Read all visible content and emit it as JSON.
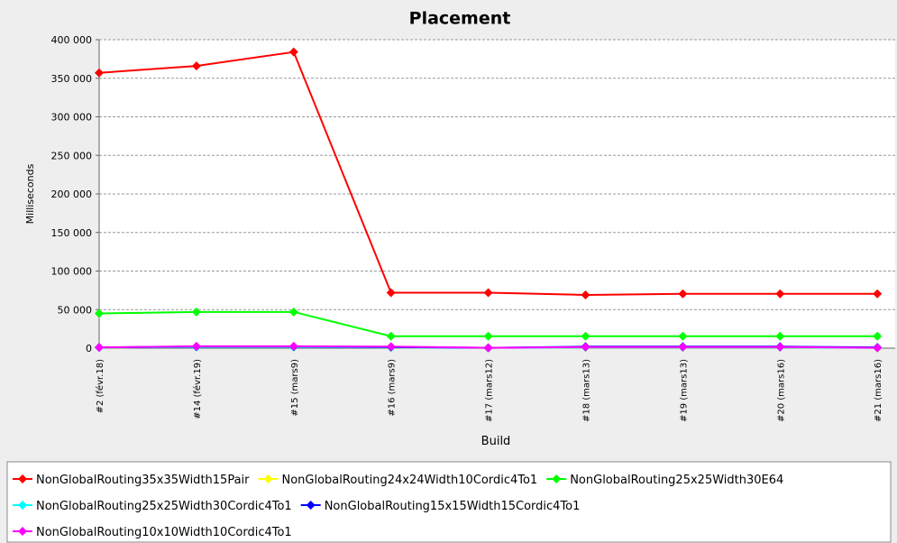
{
  "chart_data": {
    "type": "line",
    "title": "Placement",
    "xlabel": "Build",
    "ylabel": "Milliseconds",
    "categories": [
      "#2 (févr.18)",
      "#14 (févr.19)",
      "#15 (mars9)",
      "#16 (mars9)",
      "#17 (mars12)",
      "#18 (mars13)",
      "#19 (mars13)",
      "#20 (mars16)",
      "#21 (mars16)"
    ],
    "series": [
      {
        "name": "NonGlobalRouting35x35Width15Pair",
        "color": "#ff0000",
        "values": [
          357000,
          366000,
          384000,
          72000,
          72000,
          69000,
          70500,
          70500,
          70500
        ]
      },
      {
        "name": "NonGlobalRouting24x24Width10Cordic4To1",
        "color": "#ffff00",
        "values": [
          1000,
          1500,
          1500,
          1000,
          500,
          1000,
          1000,
          1000,
          500
        ]
      },
      {
        "name": "NonGlobalRouting25x25Width30E64",
        "color": "#00ff00",
        "values": [
          45000,
          47000,
          47000,
          15500,
          15500,
          15500,
          15500,
          15500,
          15500
        ]
      },
      {
        "name": "NonGlobalRouting25x25Width30Cordic4To1",
        "color": "#00ffff",
        "values": [
          1000,
          1500,
          1500,
          1000,
          500,
          1000,
          1000,
          1000,
          500
        ]
      },
      {
        "name": "NonGlobalRouting15x15Width15Cordic4To1",
        "color": "#0000ff",
        "values": [
          1000,
          2000,
          2000,
          1500,
          500,
          2000,
          2000,
          2000,
          1000
        ]
      },
      {
        "name": "NonGlobalRouting10x10Width10Cordic4To1",
        "color": "#ff00ff",
        "values": [
          1000,
          2500,
          2500,
          2000,
          500,
          1500,
          1500,
          1500,
          500
        ]
      }
    ],
    "ylim": [
      0,
      400000
    ],
    "yticks": [
      {
        "value": 0,
        "label": "0"
      },
      {
        "value": 50000,
        "label": "50 000"
      },
      {
        "value": 100000,
        "label": "100 000"
      },
      {
        "value": 150000,
        "label": "150 000"
      },
      {
        "value": 200000,
        "label": "200 000"
      },
      {
        "value": 250000,
        "label": "250 000"
      },
      {
        "value": 300000,
        "label": "300 000"
      },
      {
        "value": 350000,
        "label": "350 000"
      },
      {
        "value": 400000,
        "label": "400 000"
      }
    ],
    "grid": true
  }
}
